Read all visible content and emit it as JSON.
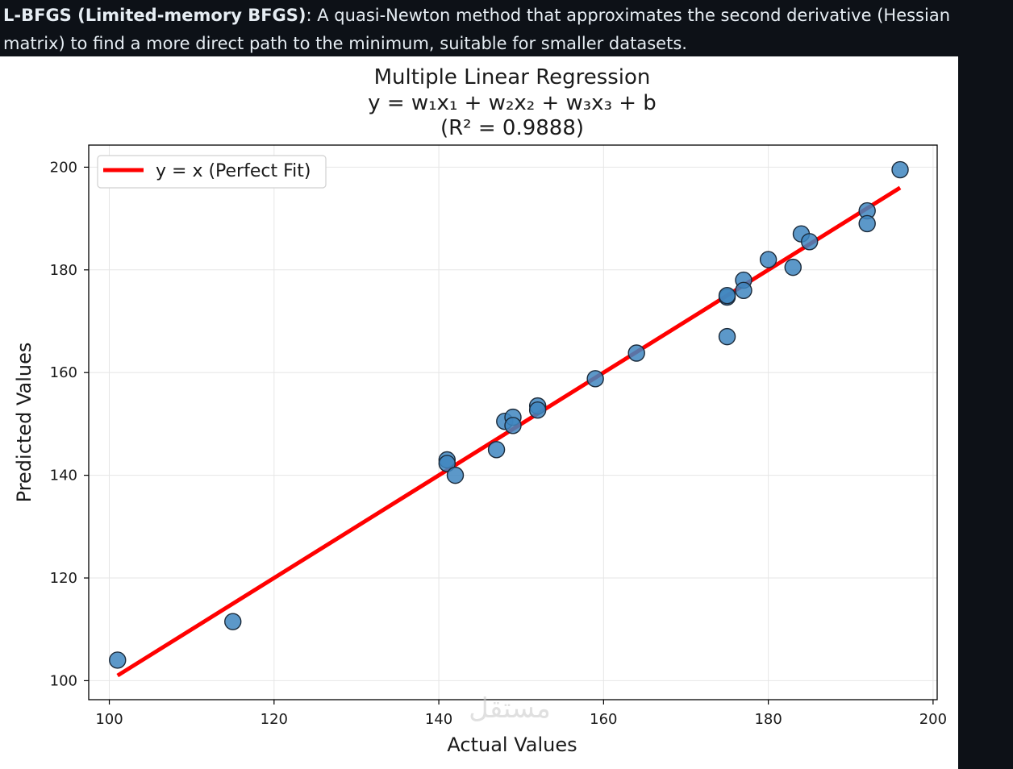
{
  "intro": {
    "term": "L-BFGS (Limited-memory BFGS)",
    "description": ": A quasi-Newton method that approximates the second derivative (Hessian matrix) to find a more direct path to the minimum, suitable for smaller datasets."
  },
  "watermark": "مستقل",
  "colors": {
    "page_background": "#0d1117",
    "scatter_fill": "#3f86bf",
    "scatter_edge": "#1b2a3a",
    "fit_line": "#ff0000",
    "grid": "#e6e6e6"
  },
  "chart_data": {
    "type": "scatter",
    "title": "Multiple Linear Regression",
    "subtitle_line1": "y = w₁x₁ + w₂x₂ + w₃x₃ + b",
    "subtitle_line2": "(R² = 0.9888)",
    "xlabel": "Actual Values",
    "ylabel": "Predicted Values",
    "xlim": [
      97.5,
      200.5
    ],
    "ylim": [
      96.3,
      204.3
    ],
    "xticks": [
      100,
      120,
      140,
      160,
      180,
      200
    ],
    "yticks": [
      100,
      120,
      140,
      160,
      180,
      200
    ],
    "grid": true,
    "legend_position": "top-left",
    "legend": [
      {
        "label": "y = x (Perfect Fit)",
        "type": "line"
      }
    ],
    "reference_line": {
      "x": [
        101,
        196
      ],
      "y": [
        101,
        196
      ]
    },
    "points": [
      {
        "x": 101,
        "y": 104
      },
      {
        "x": 115,
        "y": 111.5
      },
      {
        "x": 141,
        "y": 143
      },
      {
        "x": 141,
        "y": 142.3
      },
      {
        "x": 142,
        "y": 140
      },
      {
        "x": 147,
        "y": 145
      },
      {
        "x": 148,
        "y": 150.5
      },
      {
        "x": 149,
        "y": 151.3
      },
      {
        "x": 149,
        "y": 149.7
      },
      {
        "x": 152,
        "y": 153.5
      },
      {
        "x": 152,
        "y": 152.7
      },
      {
        "x": 159,
        "y": 158.8
      },
      {
        "x": 164,
        "y": 163.8
      },
      {
        "x": 175,
        "y": 174.7
      },
      {
        "x": 175,
        "y": 175
      },
      {
        "x": 175,
        "y": 167
      },
      {
        "x": 177,
        "y": 178
      },
      {
        "x": 177,
        "y": 176
      },
      {
        "x": 180,
        "y": 182
      },
      {
        "x": 183,
        "y": 180.5
      },
      {
        "x": 184,
        "y": 187
      },
      {
        "x": 185,
        "y": 185.5
      },
      {
        "x": 192,
        "y": 191.5
      },
      {
        "x": 192,
        "y": 189
      },
      {
        "x": 196,
        "y": 199.5
      }
    ]
  }
}
